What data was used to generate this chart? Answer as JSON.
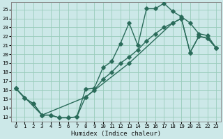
{
  "xlabel": "Humidex (Indice chaleur)",
  "bg_color": "#cce8e8",
  "grid_color": "#99ccbb",
  "line_color": "#2a6b5a",
  "xlim": [
    -0.5,
    23.5
  ],
  "ylim": [
    12.5,
    25.8
  ],
  "xticks": [
    0,
    1,
    2,
    3,
    4,
    5,
    6,
    7,
    8,
    9,
    10,
    11,
    12,
    13,
    14,
    15,
    16,
    17,
    18,
    19,
    20,
    21,
    22,
    23
  ],
  "yticks": [
    13,
    14,
    15,
    16,
    17,
    18,
    19,
    20,
    21,
    22,
    23,
    24,
    25
  ],
  "curve_top_x": [
    0,
    1,
    2,
    3,
    4,
    5,
    6,
    7,
    8,
    9,
    10,
    11,
    12,
    13,
    14,
    15,
    16,
    17,
    18,
    19,
    20,
    21,
    22,
    23
  ],
  "curve_top_y": [
    16.2,
    15.1,
    14.5,
    13.2,
    13.2,
    12.9,
    12.9,
    13.0,
    16.1,
    16.2,
    18.5,
    19.2,
    21.2,
    23.5,
    21.0,
    25.1,
    25.1,
    25.7,
    24.8,
    24.2,
    23.5,
    22.3,
    22.1,
    20.7
  ],
  "curve_mid_x": [
    0,
    1,
    2,
    3,
    4,
    5,
    6,
    7,
    8,
    9,
    10,
    11,
    12,
    13,
    14,
    15,
    16,
    17,
    18,
    19,
    20,
    21,
    22,
    23
  ],
  "curve_mid_y": [
    16.2,
    15.1,
    14.5,
    13.2,
    13.2,
    12.9,
    12.9,
    13.0,
    15.2,
    16.0,
    17.2,
    18.0,
    19.0,
    19.7,
    20.5,
    21.5,
    22.3,
    23.0,
    23.5,
    24.0,
    20.2,
    22.0,
    21.8,
    20.7
  ],
  "curve_bot_x": [
    0,
    3,
    8,
    13,
    18,
    19,
    20,
    21,
    22,
    23
  ],
  "curve_bot_y": [
    16.2,
    13.2,
    15.2,
    19.0,
    23.5,
    24.0,
    20.2,
    22.0,
    21.8,
    20.7
  ],
  "markersize": 2.8,
  "linewidth": 1.0
}
